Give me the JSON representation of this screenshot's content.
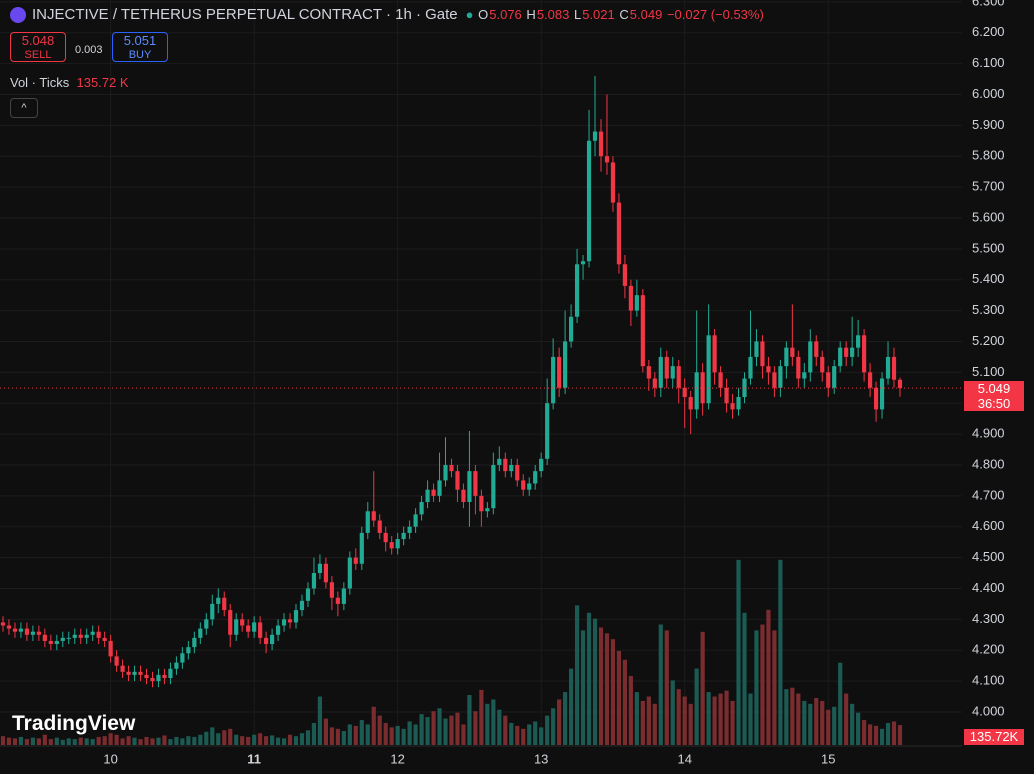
{
  "header": {
    "title": "INJECTIVE / TETHERUS PERPETUAL CONTRACT · 1h · Gate",
    "o": "O",
    "h": "H",
    "l": "L",
    "c": "C",
    "change": "−0.027 (−0.53%)",
    "sell_price": "5.048",
    "sell": "SELL",
    "spread": "0.003",
    "buy_price": "5.051",
    "buy": "BUY",
    "vol_title": "Vol · Ticks",
    "vol_value": "135.72 K",
    "vol_axis_label": "135.72K",
    "countdown": "36:50",
    "brand": "TradingView"
  },
  "chart_data": {
    "type": "candlestick",
    "up_color": "#22ab94",
    "down_color": "#f23645",
    "volume_up_color": "#1c5b53",
    "volume_down_color": "#7b2c2f",
    "grid": true,
    "xlim": [
      -0.5,
      160.37
    ],
    "xticks": [
      {
        "value": 18,
        "label": "10"
      },
      {
        "value": 42,
        "label": "11"
      },
      {
        "value": 66,
        "label": "12"
      },
      {
        "value": 90,
        "label": "13"
      },
      {
        "value": 114,
        "label": "14"
      },
      {
        "value": 138,
        "label": "15"
      }
    ],
    "ylim": [
      3.893,
      6.306
    ],
    "yticks": [
      {
        "value": 4.0,
        "label": "4.000"
      },
      {
        "value": 4.1,
        "label": "4.100"
      },
      {
        "value": 4.2,
        "label": "4.200"
      },
      {
        "value": 4.3,
        "label": "4.300"
      },
      {
        "value": 4.4,
        "label": "4.400"
      },
      {
        "value": 4.5,
        "label": "4.500"
      },
      {
        "value": 4.6,
        "label": "4.600"
      },
      {
        "value": 4.7,
        "label": "4.700"
      },
      {
        "value": 4.8,
        "label": "4.800"
      },
      {
        "value": 4.9,
        "label": "4.900"
      },
      {
        "value": 5.0,
        "label": "5.000"
      },
      {
        "value": 5.1,
        "label": "5.100"
      },
      {
        "value": 5.2,
        "label": "5.200"
      },
      {
        "value": 5.3,
        "label": "5.300"
      },
      {
        "value": 5.4,
        "label": "5.400"
      },
      {
        "value": 5.5,
        "label": "5.500"
      },
      {
        "value": 5.6,
        "label": "5.600"
      },
      {
        "value": 5.7,
        "label": "5.700"
      },
      {
        "value": 5.8,
        "label": "5.800"
      },
      {
        "value": 5.9,
        "label": "5.900"
      },
      {
        "value": 6.0,
        "label": "6.000"
      },
      {
        "value": 6.1,
        "label": "6.100"
      },
      {
        "value": 6.2,
        "label": "6.200"
      },
      {
        "value": 6.3,
        "label": "6.300"
      }
    ],
    "vlim": [
      0,
      5070
    ],
    "open": [
      4.29,
      4.28,
      4.27,
      4.26,
      4.27,
      4.25,
      4.26,
      4.25,
      4.23,
      4.22,
      4.23,
      4.24,
      4.24,
      4.25,
      4.24,
      4.25,
      4.26,
      4.24,
      4.23,
      4.18,
      4.15,
      4.13,
      4.12,
      4.13,
      4.12,
      4.11,
      4.1,
      4.12,
      4.11,
      4.14,
      4.16,
      4.19,
      4.21,
      4.24,
      4.27,
      4.3,
      4.35,
      4.37,
      4.33,
      4.25,
      4.3,
      4.28,
      4.26,
      4.29,
      4.24,
      4.22,
      4.25,
      4.28,
      4.3,
      4.29,
      4.33,
      4.36,
      4.4,
      4.45,
      4.48,
      4.42,
      4.37,
      4.35,
      4.4,
      4.5,
      4.48,
      4.58,
      4.65,
      4.62,
      4.58,
      4.55,
      4.53,
      4.56,
      4.58,
      4.6,
      4.64,
      4.68,
      4.72,
      4.7,
      4.75,
      4.8,
      4.78,
      4.72,
      4.68,
      4.78,
      4.7,
      4.65,
      4.66,
      4.8,
      4.82,
      4.78,
      4.8,
      4.75,
      4.72,
      4.74,
      4.78,
      4.82,
      5.0,
      5.15,
      5.05,
      5.2,
      5.28,
      5.45,
      5.46,
      5.85,
      5.88,
      5.8,
      5.78,
      5.65,
      5.45,
      5.38,
      5.3,
      5.35,
      5.12,
      5.08,
      5.05,
      5.15,
      5.08,
      5.12,
      5.05,
      5.02,
      4.98,
      5.1,
      5.0,
      5.22,
      5.1,
      5.05,
      5.0,
      4.98,
      5.02,
      5.08,
      5.15,
      5.2,
      5.12,
      5.1,
      5.05,
      5.12,
      5.18,
      5.15,
      5.08,
      5.1,
      5.2,
      5.15,
      5.1,
      5.05,
      5.12,
      5.18,
      5.15,
      5.18,
      5.22,
      5.1,
      5.05,
      4.98,
      5.08,
      5.15,
      5.076
    ],
    "high": [
      4.31,
      4.3,
      4.29,
      4.29,
      4.29,
      4.28,
      4.28,
      4.27,
      4.25,
      4.25,
      4.26,
      4.26,
      4.27,
      4.27,
      4.27,
      4.28,
      4.28,
      4.26,
      4.25,
      4.2,
      4.17,
      4.15,
      4.15,
      4.15,
      4.14,
      4.13,
      4.14,
      4.14,
      4.16,
      4.18,
      4.21,
      4.23,
      4.26,
      4.29,
      4.32,
      4.38,
      4.4,
      4.39,
      4.35,
      4.32,
      4.32,
      4.3,
      4.31,
      4.31,
      4.26,
      4.27,
      4.3,
      4.32,
      4.32,
      4.35,
      4.38,
      4.42,
      4.5,
      4.51,
      4.5,
      4.44,
      4.39,
      4.42,
      4.52,
      4.53,
      4.6,
      4.68,
      4.78,
      4.64,
      4.6,
      4.57,
      4.58,
      4.6,
      4.62,
      4.66,
      4.7,
      4.75,
      4.74,
      4.84,
      4.89,
      4.82,
      4.8,
      4.74,
      4.91,
      4.8,
      4.72,
      4.68,
      4.84,
      4.86,
      4.84,
      4.82,
      4.82,
      4.77,
      4.76,
      4.8,
      4.84,
      5.08,
      5.21,
      5.18,
      5.3,
      5.32,
      5.5,
      5.48,
      5.95,
      6.06,
      5.92,
      6.0,
      5.8,
      5.68,
      5.48,
      5.4,
      5.4,
      5.37,
      5.14,
      5.1,
      5.18,
      5.17,
      5.15,
      5.14,
      5.08,
      5.04,
      5.3,
      5.13,
      5.32,
      5.24,
      5.12,
      5.08,
      5.03,
      5.05,
      5.1,
      5.3,
      5.24,
      5.22,
      5.15,
      5.12,
      5.14,
      5.2,
      5.32,
      5.17,
      5.13,
      5.24,
      5.22,
      5.17,
      5.12,
      5.14,
      5.2,
      5.2,
      5.28,
      5.27,
      5.24,
      5.13,
      5.07,
      5.1,
      5.2,
      5.18,
      5.083
    ],
    "low": [
      4.26,
      4.25,
      4.24,
      4.24,
      4.23,
      4.23,
      4.23,
      4.21,
      4.2,
      4.2,
      4.21,
      4.22,
      4.22,
      4.22,
      4.22,
      4.23,
      4.22,
      4.21,
      4.16,
      4.13,
      4.11,
      4.1,
      4.1,
      4.1,
      4.09,
      4.08,
      4.08,
      4.09,
      4.09,
      4.12,
      4.14,
      4.17,
      4.19,
      4.22,
      4.25,
      4.28,
      4.32,
      4.31,
      4.21,
      4.23,
      4.26,
      4.24,
      4.24,
      4.22,
      4.19,
      4.2,
      4.23,
      4.26,
      4.27,
      4.27,
      4.31,
      4.34,
      4.38,
      4.43,
      4.4,
      4.33,
      4.31,
      4.33,
      4.38,
      4.46,
      4.46,
      4.56,
      4.6,
      4.56,
      4.52,
      4.51,
      4.51,
      4.54,
      4.56,
      4.58,
      4.62,
      4.66,
      4.68,
      4.68,
      4.73,
      4.76,
      4.68,
      4.66,
      4.6,
      4.64,
      4.6,
      4.63,
      4.64,
      4.78,
      4.76,
      4.76,
      4.73,
      4.7,
      4.7,
      4.72,
      4.76,
      4.8,
      4.98,
      5.02,
      5.03,
      5.18,
      5.26,
      5.4,
      5.44,
      5.8,
      5.75,
      5.74,
      5.62,
      5.42,
      5.34,
      5.25,
      5.28,
      5.1,
      5.04,
      5.02,
      5.02,
      5.05,
      5.05,
      5.0,
      4.92,
      4.9,
      4.95,
      4.96,
      4.98,
      5.06,
      5.02,
      4.97,
      4.95,
      4.96,
      5.0,
      5.06,
      5.12,
      5.08,
      5.06,
      5.02,
      5.02,
      5.08,
      5.12,
      5.05,
      5.05,
      5.07,
      5.12,
      5.07,
      5.02,
      5.03,
      5.1,
      5.12,
      5.12,
      5.15,
      5.07,
      5.02,
      4.94,
      4.95,
      5.06,
      5.05,
      5.021
    ],
    "close": [
      4.28,
      4.27,
      4.26,
      4.27,
      4.25,
      4.26,
      4.25,
      4.23,
      4.22,
      4.23,
      4.24,
      4.24,
      4.25,
      4.24,
      4.25,
      4.26,
      4.24,
      4.23,
      4.18,
      4.15,
      4.13,
      4.12,
      4.13,
      4.12,
      4.11,
      4.1,
      4.12,
      4.11,
      4.14,
      4.16,
      4.19,
      4.21,
      4.24,
      4.27,
      4.3,
      4.35,
      4.37,
      4.33,
      4.25,
      4.3,
      4.28,
      4.26,
      4.29,
      4.24,
      4.22,
      4.25,
      4.28,
      4.3,
      4.29,
      4.33,
      4.36,
      4.4,
      4.45,
      4.48,
      4.42,
      4.37,
      4.35,
      4.4,
      4.5,
      4.48,
      4.58,
      4.65,
      4.62,
      4.58,
      4.55,
      4.53,
      4.56,
      4.58,
      4.6,
      4.64,
      4.68,
      4.72,
      4.7,
      4.75,
      4.8,
      4.78,
      4.72,
      4.68,
      4.78,
      4.7,
      4.65,
      4.66,
      4.8,
      4.82,
      4.78,
      4.8,
      4.75,
      4.72,
      4.74,
      4.78,
      4.82,
      5.0,
      5.15,
      5.05,
      5.2,
      5.28,
      5.45,
      5.46,
      5.85,
      5.88,
      5.8,
      5.78,
      5.65,
      5.45,
      5.38,
      5.3,
      5.35,
      5.12,
      5.08,
      5.05,
      5.15,
      5.08,
      5.12,
      5.05,
      5.02,
      4.98,
      5.1,
      5.0,
      5.22,
      5.1,
      5.05,
      5.0,
      4.98,
      5.02,
      5.08,
      5.15,
      5.2,
      5.12,
      5.1,
      5.05,
      5.12,
      5.18,
      5.15,
      5.08,
      5.1,
      5.2,
      5.15,
      5.1,
      5.05,
      5.12,
      5.18,
      5.15,
      5.18,
      5.22,
      5.1,
      5.05,
      4.98,
      5.08,
      5.15,
      5.076,
      5.049
    ],
    "volume": [
      60,
      50,
      45,
      55,
      40,
      50,
      45,
      70,
      40,
      50,
      35,
      45,
      40,
      50,
      45,
      40,
      55,
      60,
      80,
      70,
      45,
      60,
      50,
      40,
      55,
      45,
      50,
      65,
      40,
      55,
      45,
      60,
      55,
      70,
      90,
      120,
      80,
      100,
      110,
      70,
      60,
      55,
      70,
      80,
      60,
      65,
      50,
      45,
      70,
      60,
      80,
      100,
      150,
      330,
      180,
      120,
      110,
      95,
      140,
      130,
      170,
      140,
      260,
      200,
      150,
      120,
      130,
      110,
      160,
      140,
      210,
      190,
      230,
      250,
      180,
      200,
      220,
      140,
      340,
      230,
      375,
      280,
      310,
      240,
      200,
      150,
      130,
      110,
      140,
      160,
      120,
      200,
      250,
      310,
      360,
      520,
      950,
      780,
      900,
      860,
      800,
      760,
      720,
      640,
      580,
      470,
      360,
      300,
      330,
      280,
      820,
      780,
      440,
      380,
      330,
      280,
      520,
      770,
      360,
      330,
      350,
      370,
      300,
      1260,
      900,
      350,
      780,
      820,
      920,
      780,
      1260,
      380,
      390,
      350,
      300,
      280,
      320,
      300,
      240,
      260,
      560,
      350,
      280,
      220,
      170,
      140,
      130,
      110,
      150,
      160,
      135.72
    ]
  }
}
